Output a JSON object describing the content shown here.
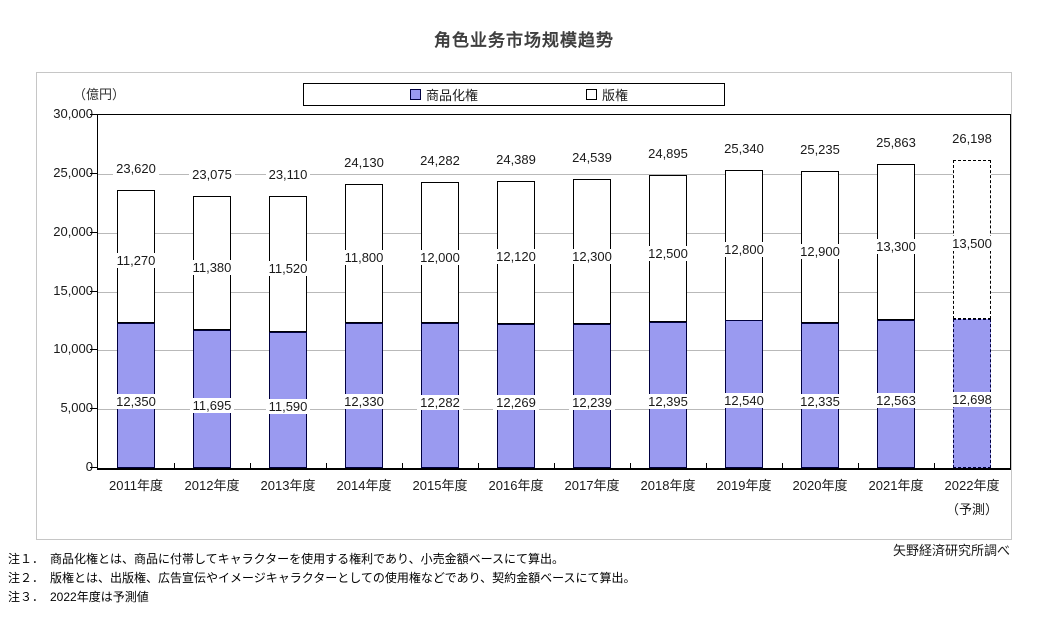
{
  "page": {
    "source_credit": "矢野経済研究所調べ"
  },
  "notes": {
    "items": [
      "注１．　商品化権とは、商品に付帯してキャラクターを使用する権利であり、小売金額ベースにて算出。",
      "注２．　版権とは、出版権、広告宣伝やイメージキャラクターとしての使用権などであり、契約金額ベースにて算出。",
      "注３．　2022年度は予測値"
    ]
  },
  "chart_data": {
    "type": "bar",
    "stacked": true,
    "title": "角色业务市场规模趋势",
    "unit_label": "（億円）",
    "categories": [
      "2011年度",
      "2012年度",
      "2013年度",
      "2014年度",
      "2015年度",
      "2016年度",
      "2017年度",
      "2018年度",
      "2019年度",
      "2020年度",
      "2021年度",
      "2022年度"
    ],
    "last_category_suffix": "（予測）",
    "forecast_index": 11,
    "series": [
      {
        "name": "商品化権",
        "color": "#9a9af0",
        "border_color": "#000040",
        "values": [
          12350,
          11695,
          11590,
          12330,
          12282,
          12269,
          12239,
          12395,
          12540,
          12335,
          12563,
          12698
        ]
      },
      {
        "name": "版権",
        "color": "#ffffff",
        "border_color": "#000000",
        "values": [
          11270,
          11380,
          11520,
          11800,
          12000,
          12120,
          12300,
          12500,
          12800,
          12900,
          13300,
          13500
        ]
      }
    ],
    "totals": [
      23620,
      23075,
      23110,
      24130,
      24282,
      24389,
      24539,
      24895,
      25340,
      25235,
      25863,
      26198
    ],
    "ylim": [
      0,
      30000
    ],
    "ytick_step": 5000,
    "grid": true,
    "gridline_color": "#b9b9b9",
    "legend_position": "top"
  }
}
